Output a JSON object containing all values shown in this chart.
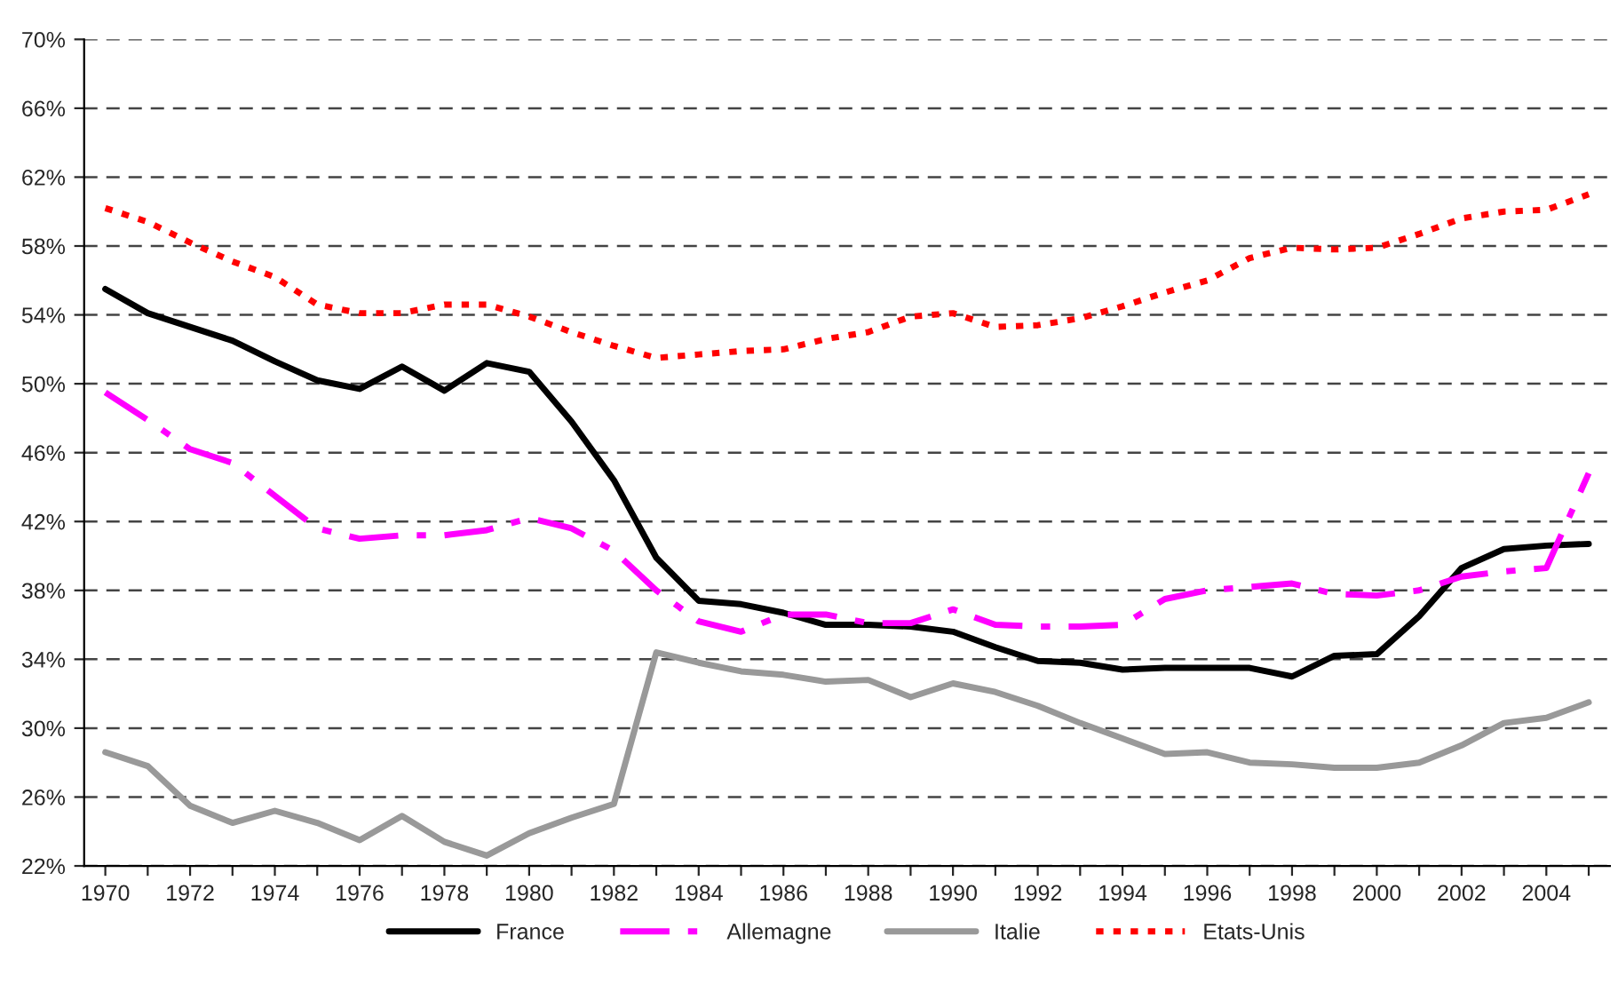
{
  "chart_data": {
    "type": "line",
    "categories": [
      "1970",
      null,
      "1972",
      null,
      "1974",
      null,
      "1976",
      null,
      "1978",
      null,
      "1980",
      null,
      "1982",
      null,
      "1984",
      null,
      "1986",
      null,
      "1988",
      null,
      "1990",
      null,
      "1992",
      null,
      "1994",
      null,
      "1996",
      null,
      "1998",
      null,
      "2000",
      null,
      "2002",
      null,
      "2004",
      null
    ],
    "series": [
      {
        "name": "France",
        "color": "#000000",
        "line_style": "solid",
        "values": [
          55.5,
          54.1,
          53.3,
          52.5,
          51.3,
          50.2,
          49.7,
          51.0,
          49.6,
          51.2,
          50.7,
          47.8,
          44.4,
          39.9,
          37.4,
          37.2,
          36.7,
          36.0,
          36.0,
          35.9,
          35.6,
          34.7,
          33.9,
          33.8,
          33.4,
          33.5,
          33.5,
          33.5,
          33.0,
          34.2,
          34.3,
          36.5,
          39.3,
          40.4,
          40.6,
          40.7
        ]
      },
      {
        "name": "Allemagne",
        "color": "#ff00ff",
        "line_style": "dashdot",
        "values": [
          49.5,
          47.9,
          46.2,
          45.4,
          43.5,
          41.6,
          41.0,
          41.2,
          41.2,
          41.5,
          42.2,
          41.6,
          40.3,
          38.0,
          36.2,
          35.6,
          36.6,
          36.6,
          36.1,
          36.1,
          36.9,
          36.0,
          35.9,
          35.9,
          36.0,
          37.5,
          38.0,
          38.2,
          38.4,
          37.8,
          37.7,
          38.0,
          38.8,
          39.1,
          39.3,
          44.8
        ]
      },
      {
        "name": "Italie",
        "color": "#999999",
        "line_style": "solid",
        "values": [
          28.6,
          27.8,
          25.5,
          24.5,
          25.2,
          24.5,
          23.5,
          24.9,
          23.4,
          22.6,
          23.9,
          24.8,
          25.6,
          34.4,
          33.8,
          33.3,
          33.1,
          32.7,
          32.8,
          31.8,
          32.6,
          32.1,
          31.3,
          30.3,
          29.4,
          28.5,
          28.6,
          28.0,
          27.9,
          27.7,
          27.7,
          28.0,
          29.0,
          30.3,
          30.6,
          31.5
        ]
      },
      {
        "name": "Etats-Unis",
        "color": "#ff0000",
        "line_style": "dotted",
        "values": [
          60.2,
          59.4,
          58.2,
          57.1,
          56.2,
          54.6,
          54.1,
          54.1,
          54.6,
          54.6,
          53.9,
          53.0,
          52.2,
          51.5,
          51.7,
          51.9,
          52.0,
          52.6,
          53.0,
          53.9,
          54.1,
          53.3,
          53.4,
          53.8,
          54.5,
          55.3,
          56.0,
          57.3,
          57.9,
          57.8,
          57.9,
          58.7,
          59.6,
          60.0,
          60.1,
          61.0
        ]
      }
    ],
    "ylim": [
      22,
      70
    ],
    "yticks": [
      {
        "value": 22,
        "label": "22%"
      },
      {
        "value": 26,
        "label": "26%"
      },
      {
        "value": 30,
        "label": "30%"
      },
      {
        "value": 34,
        "label": "34%"
      },
      {
        "value": 38,
        "label": "38%"
      },
      {
        "value": 42,
        "label": "42%"
      },
      {
        "value": 46,
        "label": "46%"
      },
      {
        "value": 50,
        "label": "50%"
      },
      {
        "value": 54,
        "label": "54%"
      },
      {
        "value": 58,
        "label": "58%"
      },
      {
        "value": 62,
        "label": "62%"
      },
      {
        "value": 66,
        "label": "66%"
      },
      {
        "value": 70,
        "label": "70%"
      }
    ],
    "grid": "y",
    "legend": "bottom"
  }
}
